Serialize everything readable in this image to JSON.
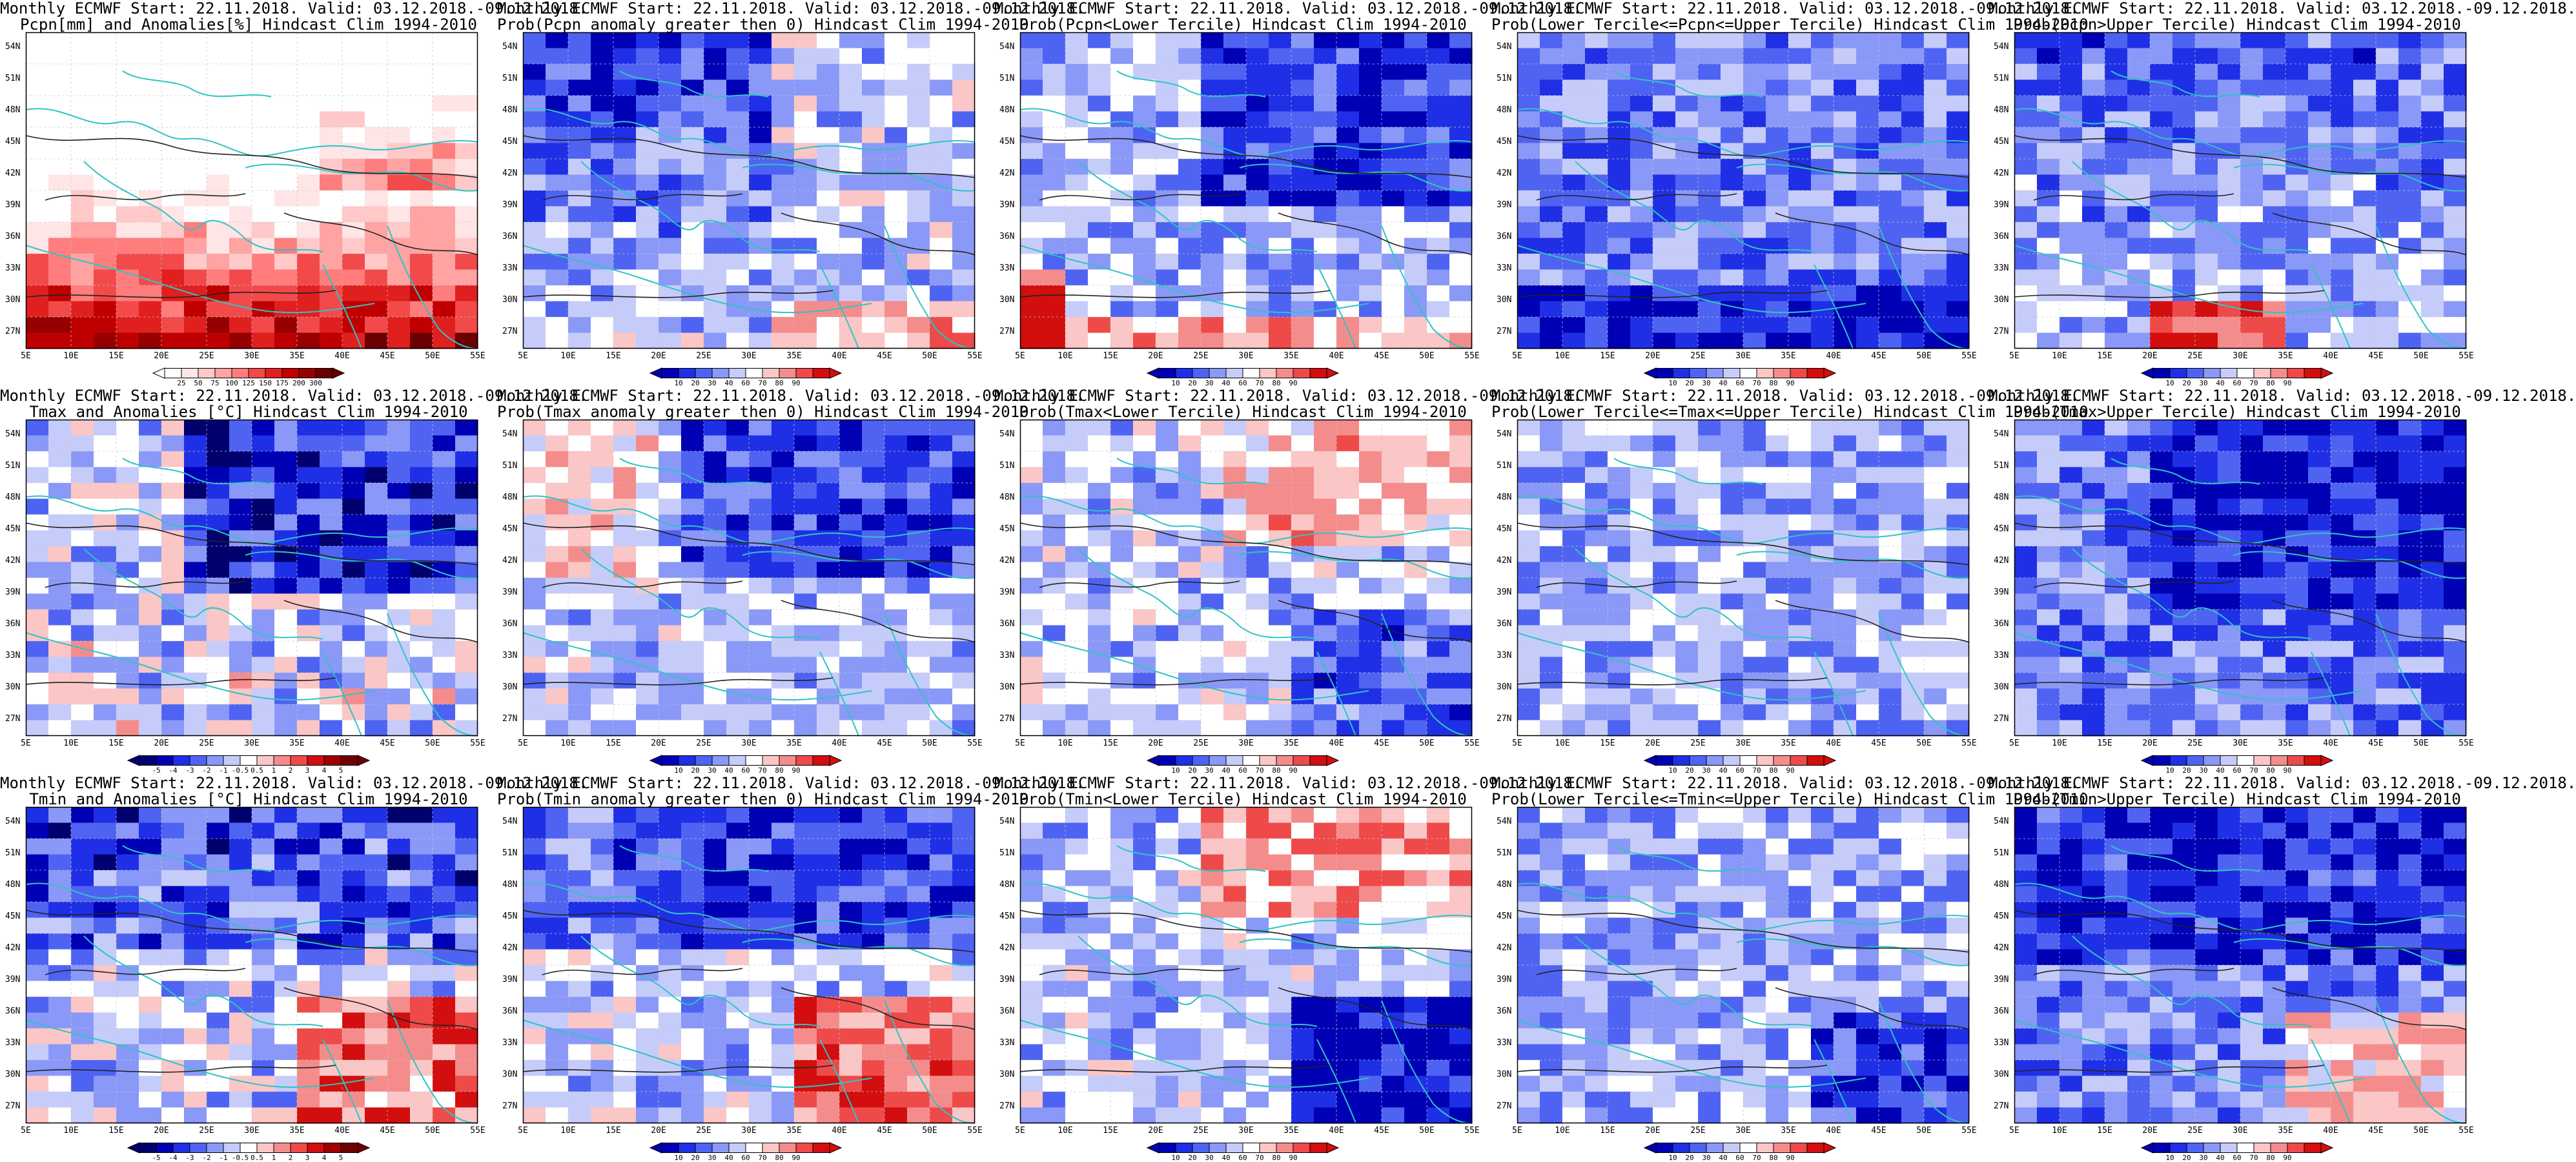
{
  "panels": [
    {
      "row": 0,
      "col": 0,
      "title": "Monthly ECMWF Start: 22.11.2018. Valid: 03.12.2018.-09.12.2018.",
      "subtitle": "Pcpn[mm] and Anomalies[%] Hindcast Clim 1994-2010",
      "scale": "anom_pcp",
      "pattern": "pcp_anom"
    },
    {
      "row": 0,
      "col": 1,
      "title": "Monthly ECMWF Start: 22.11.2018. Valid: 03.12.2018.-09.12.2018.",
      "subtitle": "Prob(Pcpn anomaly greater then 0) Hindcast Clim 1994-2010",
      "scale": "prob",
      "pattern": "pcp_prob0"
    },
    {
      "row": 0,
      "col": 2,
      "title": "Monthly ECMWF Start: 22.11.2018. Valid: 03.12.2018.-09.12.2018.",
      "subtitle": "Prob(Pcpn<Lower Tercile) Hindcast Clim 1994-2010",
      "scale": "prob",
      "pattern": "pcp_low"
    },
    {
      "row": 0,
      "col": 3,
      "title": "Monthly ECMWF Start: 22.11.2018. Valid: 03.12.2018.-09.12.2018.",
      "subtitle": "Prob(Lower Tercile<=Pcpn<=Upper Tercile) Hindcast Clim 1994-2010",
      "scale": "prob",
      "pattern": "pcp_mid"
    },
    {
      "row": 0,
      "col": 4,
      "title": "Monthly ECMWF Start: 22.11.2018. Valid: 03.12.2018.-09.12.2018.",
      "subtitle": "Prob(Pcpn>Upper Tercile) Hindcast Clim 1994-2010",
      "scale": "prob",
      "pattern": "pcp_up"
    },
    {
      "row": 1,
      "col": 0,
      "title": "Monthly ECMWF Start: 22.11.2018. Valid: 03.12.2018.-09.12.2018.",
      "subtitle": "Tmax and Anomalies [°C] Hindcast Clim 1994-2010",
      "scale": "anom_t",
      "pattern": "tmax_anom"
    },
    {
      "row": 1,
      "col": 1,
      "title": "Monthly ECMWF Start: 22.11.2018. Valid: 03.12.2018.-09.12.2018.",
      "subtitle": "Prob(Tmax anomaly greater then 0) Hindcast Clim 1994-2010",
      "scale": "prob",
      "pattern": "tmax_prob0"
    },
    {
      "row": 1,
      "col": 2,
      "title": "Monthly ECMWF Start: 22.11.2018. Valid: 03.12.2018.-09.12.2018.",
      "subtitle": "Prob(Tmax<Lower Tercile) Hindcast Clim 1994-2010",
      "scale": "prob",
      "pattern": "tmax_low"
    },
    {
      "row": 1,
      "col": 3,
      "title": "Monthly ECMWF Start: 22.11.2018. Valid: 03.12.2018.-09.12.2018.",
      "subtitle": "Prob(Lower Tercile<=Tmax<=Upper Tercile) Hindcast Clim 1994-2010",
      "scale": "prob",
      "pattern": "tmax_mid"
    },
    {
      "row": 1,
      "col": 4,
      "title": "Monthly ECMWF Start: 22.11.2018. Valid: 03.12.2018.-09.12.2018.",
      "subtitle": "Prob(Tmax>Upper Tercile) Hindcast Clim 1994-2010",
      "scale": "prob",
      "pattern": "tmax_up"
    },
    {
      "row": 2,
      "col": 0,
      "title": "Monthly ECMWF Start: 22.11.2018. Valid: 03.12.2018.-09.12.2018.",
      "subtitle": "Tmin and Anomalies [°C] Hindcast Clim 1994-2010",
      "scale": "anom_t",
      "pattern": "tmin_anom"
    },
    {
      "row": 2,
      "col": 1,
      "title": "Monthly ECMWF Start: 22.11.2018. Valid: 03.12.2018.-09.12.2018.",
      "subtitle": "Prob(Tmin anomaly greater then 0) Hindcast Clim 1994-2010",
      "scale": "prob",
      "pattern": "tmin_prob0"
    },
    {
      "row": 2,
      "col": 2,
      "title": "Monthly ECMWF Start: 22.11.2018. Valid: 03.12.2018.-09.12.2018.",
      "subtitle": "Prob(Tmin<Lower Tercile) Hindcast Clim 1994-2010",
      "scale": "prob",
      "pattern": "tmin_low"
    },
    {
      "row": 2,
      "col": 3,
      "title": "Monthly ECMWF Start: 22.11.2018. Valid: 03.12.2018.-09.12.2018.",
      "subtitle": "Prob(Lower Tercile<=Tmin<=Upper Tercile) Hindcast Clim 1994-2010",
      "scale": "prob",
      "pattern": "tmin_mid"
    },
    {
      "row": 2,
      "col": 4,
      "title": "Monthly ECMWF Start: 22.11.2018. Valid: 03.12.2018.-09.12.2018.",
      "subtitle": "Prob(Tmin>Upper Tercile) Hindcast Clim 1994-2010",
      "scale": "prob",
      "pattern": "tmin_up"
    }
  ],
  "axes": {
    "lon_labels": [
      "5E",
      "10E",
      "15E",
      "20E",
      "25E",
      "30E",
      "35E",
      "40E",
      "45E",
      "50E",
      "55E"
    ],
    "lat_labels": [
      "54N",
      "51N",
      "48N",
      "45N",
      "42N",
      "39N",
      "36N",
      "33N",
      "30N",
      "27N"
    ]
  },
  "colorbars": {
    "anom_pcp": {
      "labels": [
        "25",
        "50",
        "75",
        "100",
        "125",
        "150",
        "175",
        "200",
        "300"
      ],
      "colors": [
        "#ffffff",
        "#ffe5e5",
        "#ffc9c9",
        "#ffa3a3",
        "#ff7d7d",
        "#f24a4a",
        "#e01f1f",
        "#c00000",
        "#960000",
        "#6a0000"
      ]
    },
    "prob": {
      "labels": [
        "10",
        "20",
        "30",
        "40",
        "60",
        "70",
        "80",
        "90"
      ],
      "colors": [
        "#0000b5",
        "#1f2fe6",
        "#4f63f2",
        "#8a98f7",
        "#c6ccfa",
        "#ffffff",
        "#fbc6c6",
        "#f58c8c",
        "#ee4a4a",
        "#d20e0e"
      ]
    },
    "anom_t": {
      "labels": [
        "-5",
        "-4",
        "-3",
        "-2",
        "-1",
        "-0.5",
        "0.5",
        "1",
        "2",
        "3",
        "4",
        "5"
      ],
      "colors": [
        "#00006e",
        "#0000b5",
        "#1f2fe6",
        "#4f63f2",
        "#8a98f7",
        "#c6ccfa",
        "#ffffff",
        "#fbc6c6",
        "#f58c8c",
        "#ee4a4a",
        "#d20e0e",
        "#a00000",
        "#700000"
      ]
    }
  },
  "map_colors": {
    "coast": "#2ec4c4",
    "contour": "#222222",
    "grid": "#c8c8c8"
  }
}
